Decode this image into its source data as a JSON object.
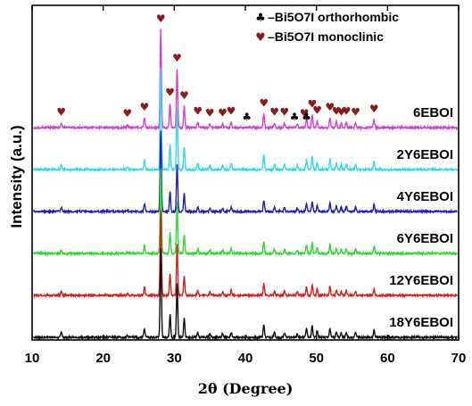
{
  "chart_data": {
    "type": "line",
    "xlabel": "2θ (Degree)",
    "ylabel": "Intensity (a.u.)",
    "xlim": [
      10,
      70
    ],
    "x_ticks": [
      "10",
      "20",
      "30",
      "40",
      "50",
      "60",
      "70"
    ],
    "grid": false,
    "legend": {
      "position": "top-right",
      "entries": [
        {
          "symbol": "♣",
          "label": "–Bi5O7I  orthorhombic",
          "color": "#000000"
        },
        {
          "symbol": "♥",
          "label": "–Bi5O7I  monoclinic",
          "color": "#8b1a1a"
        }
      ]
    },
    "series": [
      {
        "name": "6EBOI",
        "color": "#d63fd6"
      },
      {
        "name": "2Y6EBOI",
        "color": "#33dbe8"
      },
      {
        "name": "4Y6EBOI",
        "color": "#1f1fb0"
      },
      {
        "name": "6Y6EBOI",
        "color": "#2ed82e"
      },
      {
        "name": "12Y6EBOI",
        "color": "#d42020"
      },
      {
        "name": "18Y6EBOI",
        "color": "#111111"
      }
    ],
    "peaks_2theta": [
      {
        "x": 14.1,
        "h": 0.05
      },
      {
        "x": 23.4,
        "h": 0.02
      },
      {
        "x": 25.8,
        "h": 0.1
      },
      {
        "x": 28.1,
        "h": 1.0
      },
      {
        "x": 29.4,
        "h": 0.25
      },
      {
        "x": 30.4,
        "h": 0.6
      },
      {
        "x": 31.4,
        "h": 0.22
      },
      {
        "x": 33.3,
        "h": 0.06
      },
      {
        "x": 35.0,
        "h": 0.04
      },
      {
        "x": 36.8,
        "h": 0.04
      },
      {
        "x": 38.0,
        "h": 0.06
      },
      {
        "x": 42.6,
        "h": 0.14
      },
      {
        "x": 44.1,
        "h": 0.05
      },
      {
        "x": 45.5,
        "h": 0.05
      },
      {
        "x": 47.3,
        "h": 0.04
      },
      {
        "x": 48.6,
        "h": 0.1
      },
      {
        "x": 49.4,
        "h": 0.13
      },
      {
        "x": 50.1,
        "h": 0.07
      },
      {
        "x": 51.9,
        "h": 0.1
      },
      {
        "x": 52.8,
        "h": 0.06
      },
      {
        "x": 53.5,
        "h": 0.05
      },
      {
        "x": 54.2,
        "h": 0.06
      },
      {
        "x": 55.5,
        "h": 0.05
      },
      {
        "x": 58.1,
        "h": 0.08
      }
    ],
    "monoclinic_markers_2theta": [
      14.1,
      23.4,
      25.8,
      28.1,
      29.4,
      30.4,
      31.4,
      33.3,
      35.0,
      36.8,
      38.0,
      42.6,
      44.1,
      45.5,
      48.3,
      49.4,
      50.1,
      51.9,
      52.8,
      53.5,
      54.2,
      55.5,
      58.1
    ],
    "orthorhombic_markers_2theta": [
      40.2,
      46.9,
      48.6
    ]
  }
}
